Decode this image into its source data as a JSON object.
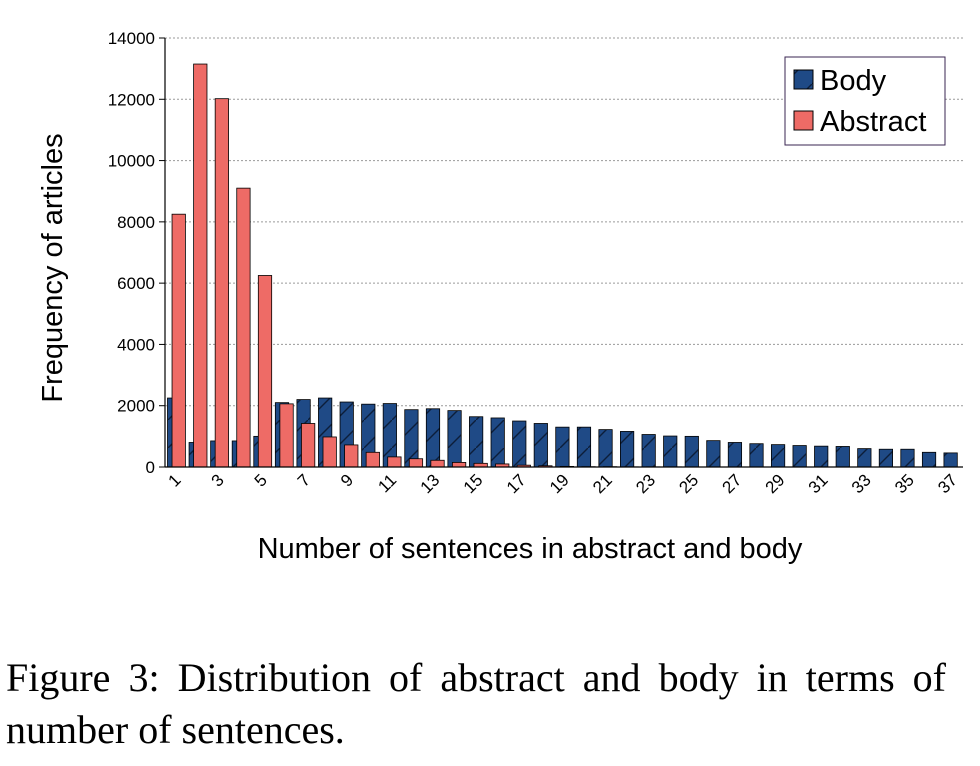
{
  "caption": "Figure 3: Distribution of abstract and body in terms of number of sentences.",
  "chart_data": {
    "type": "bar",
    "title": "",
    "xlabel": "Number of sentences in abstract and body",
    "ylabel": "Frequency of articles",
    "ylim": [
      0,
      14000
    ],
    "yticks": [
      0,
      2000,
      4000,
      6000,
      8000,
      10000,
      12000,
      14000
    ],
    "grid": true,
    "legend_position": "top-right",
    "categories": [
      1,
      2,
      3,
      4,
      5,
      6,
      7,
      8,
      9,
      10,
      11,
      12,
      13,
      14,
      15,
      16,
      17,
      18,
      19,
      20,
      21,
      22,
      23,
      24,
      25,
      26,
      27,
      28,
      29,
      30,
      31,
      32,
      33,
      34,
      35,
      36,
      37
    ],
    "xtick_labels": [
      "1",
      "3",
      "5",
      "7",
      "9",
      "11",
      "13",
      "15",
      "17",
      "19",
      "21",
      "23",
      "25",
      "27",
      "29",
      "31",
      "33",
      "35",
      "37"
    ],
    "series": [
      {
        "name": "Body",
        "color": "#1f4a86",
        "pattern": "hatch",
        "values": [
          2250,
          800,
          850,
          850,
          1000,
          2100,
          2200,
          2250,
          2120,
          2050,
          2070,
          1870,
          1900,
          1840,
          1640,
          1600,
          1500,
          1420,
          1300,
          1300,
          1220,
          1160,
          1060,
          1010,
          1000,
          860,
          800,
          760,
          730,
          700,
          680,
          670,
          600,
          580,
          580,
          480,
          460
        ]
      },
      {
        "name": "Abstract",
        "color": "#ee6b66",
        "pattern": "solid",
        "values": [
          8250,
          13150,
          12020,
          9100,
          6250,
          2060,
          1420,
          980,
          720,
          480,
          330,
          270,
          220,
          150,
          120,
          100,
          60,
          40,
          20,
          10,
          10,
          5,
          5,
          5,
          0,
          0,
          0,
          0,
          0,
          0,
          0,
          0,
          0,
          0,
          0,
          0,
          0
        ]
      }
    ]
  }
}
